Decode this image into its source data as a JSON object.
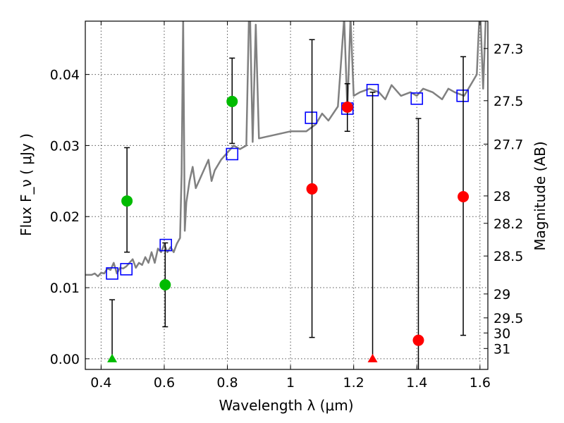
{
  "chart_data": {
    "type": "scatter",
    "xlabel": "Wavelength  λ (μm)",
    "ylabel": "Flux  F_ν  ( μJy )",
    "y2label": "Magnitude (AB)",
    "xlim": [
      0.35,
      1.625
    ],
    "ylim": [
      -0.0015,
      0.0475
    ],
    "grid": true,
    "x_ticks": [
      {
        "value": 0.4,
        "label": "0.4"
      },
      {
        "value": 0.6,
        "label": "0.6"
      },
      {
        "value": 0.8,
        "label": "0.8"
      },
      {
        "value": 1.0,
        "label": "1"
      },
      {
        "value": 1.2,
        "label": "1.2"
      },
      {
        "value": 1.4,
        "label": "1.4"
      },
      {
        "value": 1.6,
        "label": "1.6"
      }
    ],
    "y_ticks": [
      {
        "value": 0.0,
        "label": "0.00"
      },
      {
        "value": 0.01,
        "label": "0.01"
      },
      {
        "value": 0.02,
        "label": "0.02"
      },
      {
        "value": 0.03,
        "label": "0.03"
      },
      {
        "value": 0.04,
        "label": "0.04"
      }
    ],
    "y2_ticks": [
      {
        "value": 27.3,
        "label": "27.3"
      },
      {
        "value": 27.5,
        "label": "27.5"
      },
      {
        "value": 27.7,
        "label": "27.7"
      },
      {
        "value": 28.0,
        "label": "28"
      },
      {
        "value": 28.2,
        "label": "28.2"
      },
      {
        "value": 28.5,
        "label": "28.5"
      },
      {
        "value": 29.0,
        "label": "29"
      },
      {
        "value": 29.5,
        "label": "29.5"
      },
      {
        "value": 30.0,
        "label": "30"
      },
      {
        "value": 31.0,
        "label": "31"
      }
    ],
    "colors": {
      "model": "#808080",
      "model_points": "#0000ff",
      "detections_green": "#00bb00",
      "detections_red": "#ff0000",
      "errorbar": "#000000",
      "grid": "#555555"
    },
    "series": [
      {
        "kind": "spectrum",
        "x": [
          0.35,
          0.37,
          0.38,
          0.39,
          0.4,
          0.41,
          0.42,
          0.43,
          0.44,
          0.45,
          0.46,
          0.47,
          0.48,
          0.49,
          0.5,
          0.51,
          0.52,
          0.53,
          0.54,
          0.55,
          0.56,
          0.57,
          0.58,
          0.59,
          0.6,
          0.61,
          0.62,
          0.63,
          0.64,
          0.65,
          0.655,
          0.66,
          0.665,
          0.67,
          0.68,
          0.69,
          0.7,
          0.72,
          0.74,
          0.75,
          0.76,
          0.78,
          0.8,
          0.82,
          0.84,
          0.86,
          0.87,
          0.88,
          0.89,
          0.9,
          0.95,
          1.0,
          1.05,
          1.08,
          1.1,
          1.12,
          1.15,
          1.17,
          1.18,
          1.19,
          1.2,
          1.22,
          1.25,
          1.28,
          1.3,
          1.32,
          1.35,
          1.38,
          1.4,
          1.42,
          1.45,
          1.48,
          1.5,
          1.52,
          1.55,
          1.57,
          1.59,
          1.6,
          1.61,
          1.62
        ],
        "y": [
          0.0118,
          0.0118,
          0.012,
          0.0116,
          0.0121,
          0.012,
          0.0127,
          0.0125,
          0.0135,
          0.012,
          0.0128,
          0.0127,
          0.013,
          0.0135,
          0.014,
          0.0128,
          0.0135,
          0.0132,
          0.0143,
          0.0135,
          0.015,
          0.0135,
          0.0155,
          0.015,
          0.0161,
          0.015,
          0.0157,
          0.015,
          0.0162,
          0.017,
          0.026,
          0.048,
          0.018,
          0.022,
          0.025,
          0.027,
          0.024,
          0.026,
          0.028,
          0.025,
          0.0265,
          0.028,
          0.029,
          0.03,
          0.0295,
          0.03,
          0.052,
          0.0305,
          0.047,
          0.031,
          0.0315,
          0.032,
          0.032,
          0.033,
          0.0345,
          0.0335,
          0.0355,
          0.048,
          0.035,
          0.048,
          0.037,
          0.0375,
          0.038,
          0.0375,
          0.0365,
          0.0385,
          0.037,
          0.0375,
          0.037,
          0.038,
          0.0375,
          0.0365,
          0.038,
          0.0375,
          0.037,
          0.0385,
          0.04,
          0.05,
          0.038,
          0.05
        ]
      },
      {
        "kind": "model_points",
        "marker": "open-square",
        "x": [
          0.435,
          0.48,
          0.605,
          0.815,
          1.065,
          1.18,
          1.26,
          1.4,
          1.545
        ],
        "y": [
          0.012,
          0.0126,
          0.016,
          0.0288,
          0.0339,
          0.0352,
          0.0378,
          0.0366,
          0.037
        ]
      },
      {
        "kind": "detections",
        "marker": "circle",
        "color_key": "detections_green",
        "x": [
          0.482,
          0.603,
          0.815
        ],
        "y": [
          0.0222,
          0.0104,
          0.0362
        ],
        "err_low": [
          0.015,
          0.0045,
          0.0303
        ],
        "err_high": [
          0.0297,
          0.0163,
          0.0423
        ]
      },
      {
        "kind": "detections",
        "marker": "circle",
        "color_key": "detections_red",
        "x": [
          1.068,
          1.18,
          1.405,
          1.547
        ],
        "y": [
          0.0239,
          0.0354,
          0.0026,
          0.0228
        ],
        "err_low": [
          0.003,
          0.032,
          -0.002,
          0.0033
        ],
        "err_high": [
          0.0449,
          0.0387,
          0.0338,
          0.0425
        ]
      },
      {
        "kind": "upper_limits",
        "marker": "triangle",
        "points": [
          {
            "x": 0.435,
            "y": 0.0,
            "err_high": 0.0083,
            "color_key": "detections_green"
          },
          {
            "x": 1.26,
            "y": 0.0,
            "err_high": 0.0375,
            "color_key": "detections_red"
          }
        ]
      }
    ]
  }
}
